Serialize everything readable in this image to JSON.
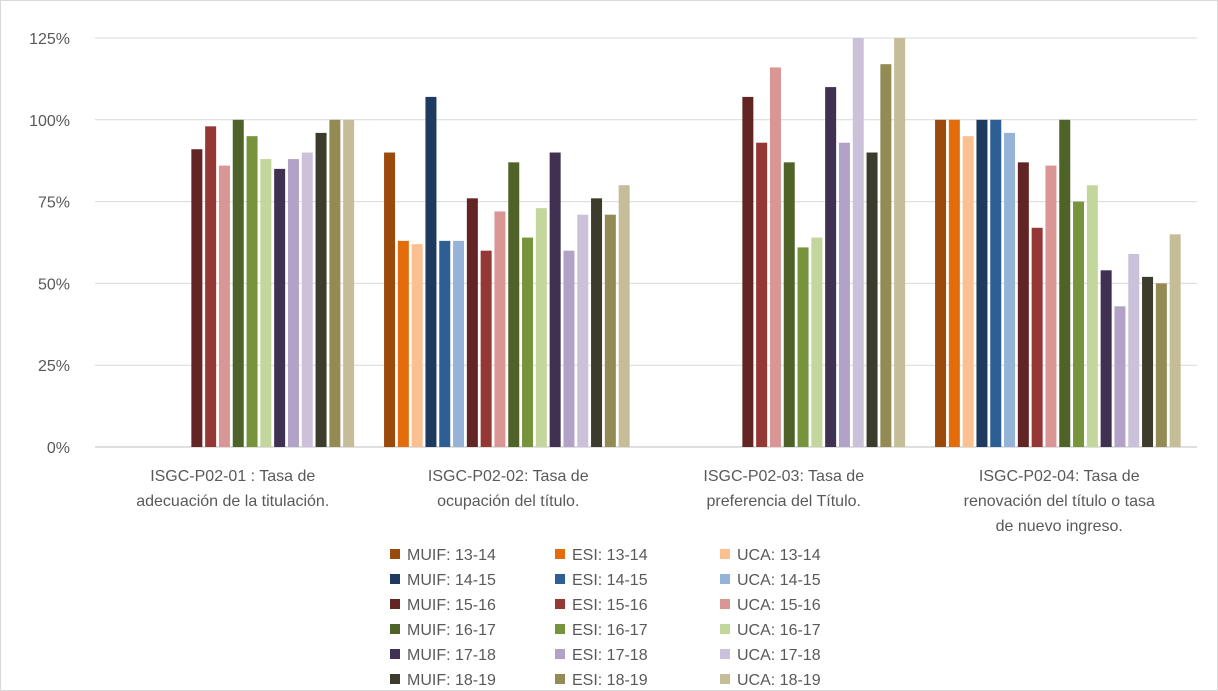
{
  "chart_data": {
    "type": "bar",
    "ylim": [
      0,
      125
    ],
    "yticks": [
      "0%",
      "25%",
      "50%",
      "75%",
      "100%",
      "125%"
    ],
    "grid": true,
    "legend_position": "bottom",
    "categories": [
      [
        "ISGC-P02-01 : Tasa de",
        "adecuación de la titulación."
      ],
      [
        "ISGC-P02-02: Tasa de",
        "ocupación del título."
      ],
      [
        "ISGC-P02-03: Tasa de",
        "preferencia del Título."
      ],
      [
        "ISGC-P02-04: Tasa de",
        "renovación del título o tasa",
        "de nuevo ingreso."
      ]
    ],
    "series": [
      {
        "name": "MUIF: 13-14",
        "color": "#9c4a0c",
        "values": [
          null,
          90,
          null,
          100
        ]
      },
      {
        "name": "ESI: 13-14",
        "color": "#e46c0a",
        "values": [
          null,
          63,
          null,
          100
        ]
      },
      {
        "name": "UCA: 13-14",
        "color": "#fac090",
        "values": [
          null,
          62,
          null,
          95
        ]
      },
      {
        "name": "MUIF: 14-15",
        "color": "#1f3a5f",
        "values": [
          null,
          107,
          null,
          100
        ]
      },
      {
        "name": "ESI: 14-15",
        "color": "#2e5f94",
        "values": [
          null,
          63,
          null,
          100
        ]
      },
      {
        "name": "UCA: 14-15",
        "color": "#95b3d7",
        "values": [
          null,
          63,
          null,
          96
        ]
      },
      {
        "name": "MUIF: 15-16",
        "color": "#632523",
        "values": [
          91,
          76,
          107,
          87
        ]
      },
      {
        "name": "ESI: 15-16",
        "color": "#953735",
        "values": [
          98,
          60,
          93,
          67
        ]
      },
      {
        "name": "UCA: 15-16",
        "color": "#d99694",
        "values": [
          86,
          72,
          116,
          86
        ]
      },
      {
        "name": "MUIF: 16-17",
        "color": "#4f6228",
        "values": [
          100,
          87,
          87,
          100
        ]
      },
      {
        "name": "ESI: 16-17",
        "color": "#77933c",
        "values": [
          95,
          64,
          61,
          75
        ]
      },
      {
        "name": "UCA: 16-17",
        "color": "#c3d69b",
        "values": [
          88,
          73,
          64,
          80
        ]
      },
      {
        "name": "MUIF: 17-18",
        "color": "#403152",
        "values": [
          85,
          90,
          110,
          54
        ]
      },
      {
        "name": "ESI: 17-18",
        "color": "#b3a2c7",
        "values": [
          88,
          60,
          93,
          43
        ]
      },
      {
        "name": "UCA: 17-18",
        "color": "#ccc1da",
        "values": [
          90,
          71,
          125,
          59
        ]
      },
      {
        "name": "MUIF: 18-19",
        "color": "#3d3b2b",
        "values": [
          96,
          76,
          90,
          52
        ]
      },
      {
        "name": "ESI: 18-19",
        "color": "#948a54",
        "values": [
          100,
          71,
          117,
          50
        ]
      },
      {
        "name": "UCA: 18-19",
        "color": "#c4bd97",
        "values": [
          100,
          80,
          125,
          65
        ]
      }
    ]
  }
}
